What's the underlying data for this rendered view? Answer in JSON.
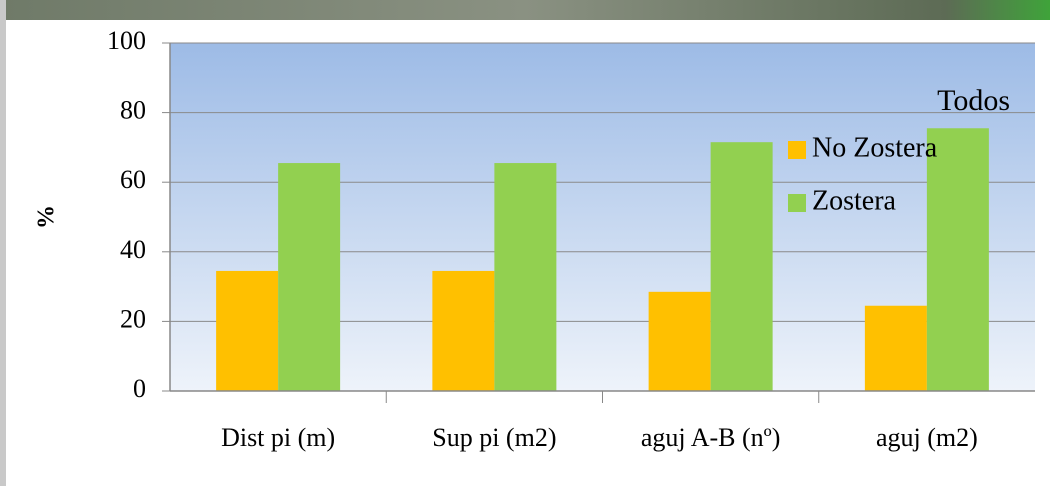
{
  "chart_data": {
    "type": "bar",
    "title": "Todos",
    "y_label": "%",
    "categories": [
      "Dist pi (m)",
      "Sup pi (m2)",
      "aguj A-B (nº)",
      "aguj (m2)"
    ],
    "series": [
      {
        "name": "No Zostera",
        "color": "#ffc000",
        "values": [
          34.5,
          34.5,
          28.5,
          24.5
        ]
      },
      {
        "name": "Zostera",
        "color": "#92d050",
        "values": [
          65.5,
          65.5,
          71.5,
          75.5
        ]
      }
    ],
    "ylim": [
      0,
      100
    ],
    "yticks": [
      0,
      20,
      40,
      60,
      80,
      100
    ],
    "grid": true
  }
}
